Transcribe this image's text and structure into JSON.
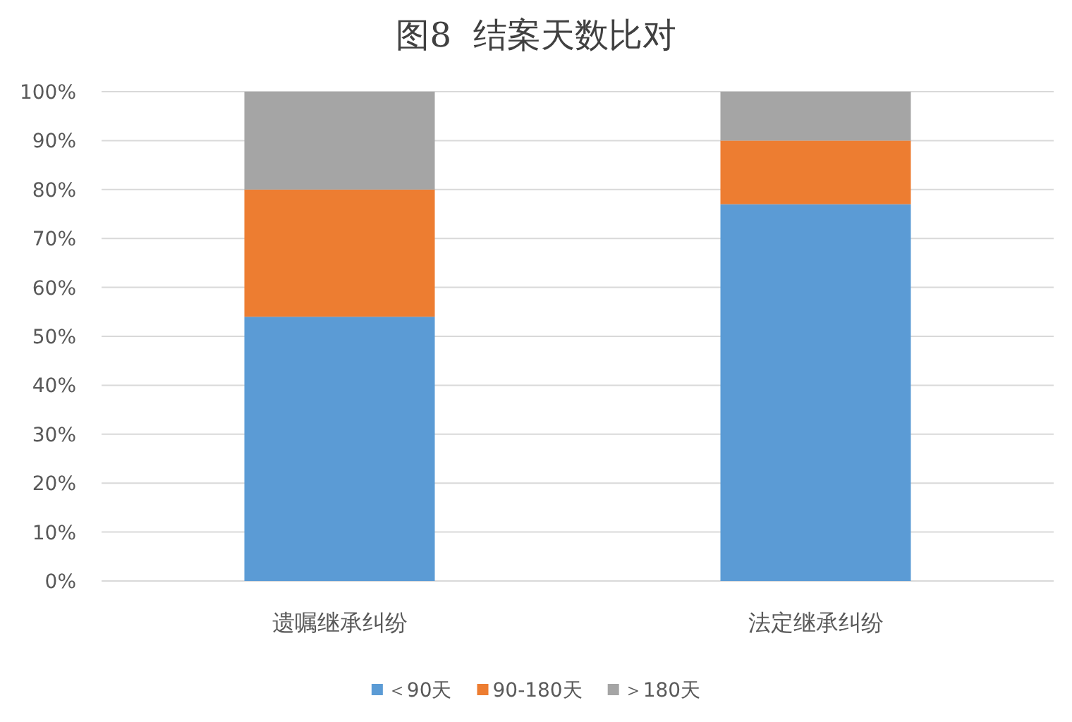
{
  "chart_data": {
    "type": "bar",
    "title": "图8  结案天数比对",
    "categories": [
      "遗嘱继承纠纷",
      "法定继承纠纷"
    ],
    "stacked": true,
    "series": [
      {
        "name": "＜90天",
        "color": "#5b9bd5",
        "values": [
          54,
          77
        ]
      },
      {
        "name": "90-180天",
        "color": "#ed7d31",
        "values": [
          26,
          13
        ]
      },
      {
        "name": "＞180天",
        "color": "#a5a5a5",
        "values": [
          20,
          10
        ]
      }
    ],
    "ylim": [
      0,
      100
    ],
    "yticks": [
      {
        "value": 0,
        "label": "0%"
      },
      {
        "value": 10,
        "label": "10%"
      },
      {
        "value": 20,
        "label": "20%"
      },
      {
        "value": 30,
        "label": "30%"
      },
      {
        "value": 40,
        "label": "40%"
      },
      {
        "value": 50,
        "label": "50%"
      },
      {
        "value": 60,
        "label": "60%"
      },
      {
        "value": 70,
        "label": "70%"
      },
      {
        "value": 80,
        "label": "80%"
      },
      {
        "value": 90,
        "label": "90%"
      },
      {
        "value": 100,
        "label": "100%"
      }
    ],
    "grid": "y",
    "legend": "bottom"
  }
}
